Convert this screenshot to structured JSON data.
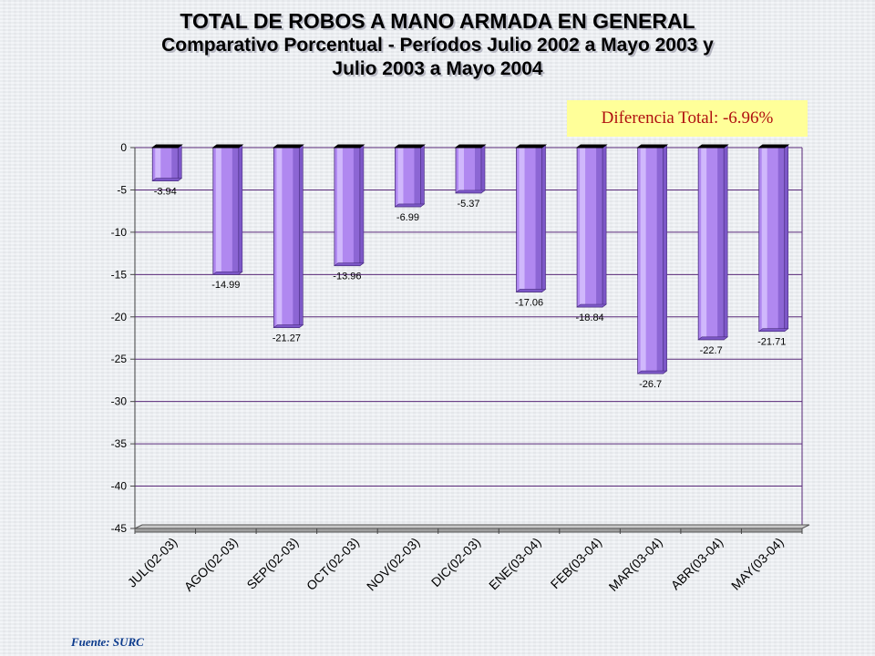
{
  "header": {
    "title_line1": "TOTAL DE ROBOS A MANO ARMADA EN GENERAL",
    "title_line2": "Comparativo Porcentual - Períodos Julio 2002 a Mayo 2003 y",
    "title_line3": "Julio 2003 a Mayo 2004"
  },
  "summary": {
    "difference_text": "Diferencia Total: -6.96%"
  },
  "footer": {
    "source": "Fuente: SURC"
  },
  "colors": {
    "bar": "#b088f0",
    "bar_dark": "#7d58c8",
    "bar_light": "#d8c4ff",
    "grid": "#5a2a7a",
    "summary_bg": "#ffff99",
    "summary_text": "#b01010"
  },
  "chart_data": {
    "type": "bar",
    "categories": [
      "JUL(02-03)",
      "AGO(02-03)",
      "SEP(02-03)",
      "OCT(02-03)",
      "NOV(02-03)",
      "DIC(02-03)",
      "ENE(03-04)",
      "FEB(03-04)",
      "MAR(03-04)",
      "ABR(03-04)",
      "MAY(03-04)"
    ],
    "values": [
      -3.94,
      -14.99,
      -21.27,
      -13.96,
      -6.99,
      -5.37,
      -17.06,
      -18.84,
      -26.7,
      -22.7,
      -21.71
    ],
    "data_labels": [
      "-3.94",
      "-14.99",
      "-21.27",
      "-13.96",
      "-6.99",
      "-5.37",
      "-17.06",
      "-18.84",
      "-26.7",
      "-22.7",
      "-21.71"
    ],
    "ylim": [
      -45,
      0
    ],
    "yticks": [
      0,
      -5,
      -10,
      -15,
      -20,
      -25,
      -30,
      -35,
      -40,
      -45
    ],
    "ytick_labels": [
      "0",
      "-5",
      "-10",
      "-15",
      "-20",
      "-25",
      "-30",
      "-35",
      "-40",
      "-45"
    ],
    "grid": true,
    "title": "",
    "xlabel": "",
    "ylabel": ""
  }
}
